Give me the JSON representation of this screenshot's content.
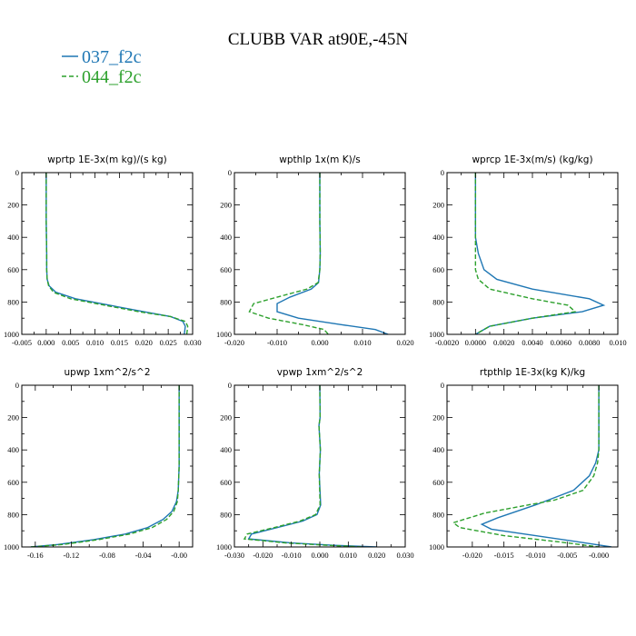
{
  "title": "CLUBB VAR at90E,-45N",
  "colors": {
    "s037": "#1f77b4",
    "s044": "#2ca02c"
  },
  "legend": [
    {
      "label": "037_f2c",
      "color": "#1f77b4",
      "dash": "solid"
    },
    {
      "label": "044_f2c",
      "color": "#2ca02c",
      "dash": "dashed"
    }
  ],
  "chart_data": [
    {
      "type": "line",
      "title": "wprtp  1E-3x(m kg)/(s kg)",
      "xlim": [
        -0.005,
        0.03
      ],
      "ylim": [
        1000,
        0
      ],
      "xticks": [
        -0.005,
        0.0,
        0.005,
        0.01,
        0.015,
        0.02,
        0.025,
        0.03
      ],
      "xtick_labels": [
        "-0.005",
        "0.000",
        "0.005",
        "0.010",
        "0.015",
        "0.020",
        "0.025",
        "0.030"
      ],
      "yticks": [
        0,
        200,
        400,
        600,
        800,
        1000
      ],
      "ytick_labels": [
        "0",
        "200",
        "400",
        "600",
        "800",
        "1000"
      ],
      "series": [
        {
          "name": "037_f2c",
          "color": "#1f77b4",
          "dash": "solid",
          "x": [
            0.0,
            0.0,
            0.0001,
            0.0001,
            0.0002,
            0.0006,
            0.002,
            0.006,
            0.013,
            0.02,
            0.0255,
            0.028,
            0.0285,
            0.0283
          ],
          "y": [
            0,
            300,
            500,
            600,
            660,
            700,
            740,
            780,
            820,
            860,
            890,
            920,
            950,
            1000
          ]
        },
        {
          "name": "044_f2c",
          "color": "#2ca02c",
          "dash": "dashed",
          "x": [
            0.0,
            0.0,
            0.0001,
            0.0001,
            0.0002,
            0.0005,
            0.0015,
            0.005,
            0.012,
            0.019,
            0.0255,
            0.0285,
            0.029,
            0.0288
          ],
          "y": [
            0,
            300,
            500,
            600,
            660,
            700,
            740,
            780,
            820,
            860,
            890,
            920,
            950,
            1000
          ]
        }
      ]
    },
    {
      "type": "line",
      "title": "wpthlp  1x(m K)/s",
      "xlim": [
        -0.02,
        0.02
      ],
      "ylim": [
        1000,
        0
      ],
      "xticks": [
        -0.02,
        -0.01,
        0.0,
        0.01,
        0.02
      ],
      "xtick_labels": [
        "-0.020",
        "-0.010",
        "0.000",
        "0.010",
        "0.020"
      ],
      "yticks": [
        0,
        200,
        400,
        600,
        800,
        1000
      ],
      "ytick_labels": [
        "0",
        "200",
        "400",
        "600",
        "800",
        "1000"
      ],
      "series": [
        {
          "name": "037_f2c",
          "color": "#1f77b4",
          "dash": "solid",
          "x": [
            0.0,
            0.0,
            0.0001,
            0.0,
            -0.0003,
            -0.002,
            -0.007,
            -0.01,
            -0.01,
            -0.005,
            0.005,
            0.013,
            0.016
          ],
          "y": [
            0,
            300,
            500,
            600,
            680,
            720,
            770,
            810,
            860,
            900,
            940,
            970,
            1000
          ]
        },
        {
          "name": "044_f2c",
          "color": "#2ca02c",
          "dash": "dashed",
          "x": [
            0.0,
            0.0,
            0.0001,
            0.0,
            -0.0004,
            -0.003,
            -0.01,
            -0.0155,
            -0.0165,
            -0.012,
            -0.004,
            0.001,
            0.002
          ],
          "y": [
            0,
            300,
            500,
            600,
            680,
            720,
            770,
            810,
            860,
            900,
            940,
            970,
            1000
          ]
        }
      ]
    },
    {
      "type": "line",
      "title": "wprcp  1E-3x(m/s) (kg/kg)",
      "xlim": [
        -0.002,
        0.01
      ],
      "ylim": [
        1000,
        0
      ],
      "xticks": [
        -0.002,
        0.0,
        0.002,
        0.004,
        0.006,
        0.008,
        0.01
      ],
      "xtick_labels": [
        "-0.0020",
        "0.0000",
        "0.0020",
        "0.0040",
        "0.0060",
        "0.0080",
        "0.010"
      ],
      "yticks": [
        0,
        200,
        400,
        600,
        800,
        1000
      ],
      "ytick_labels": [
        "0",
        "200",
        "400",
        "600",
        "800",
        "1000"
      ],
      "series": [
        {
          "name": "037_f2c",
          "color": "#1f77b4",
          "dash": "solid",
          "x": [
            0.0,
            0.0,
            0.0,
            0.0002,
            0.0006,
            0.0015,
            0.004,
            0.008,
            0.009,
            0.0075,
            0.004,
            0.001,
            0.0
          ],
          "y": [
            0,
            300,
            400,
            500,
            600,
            660,
            720,
            780,
            820,
            860,
            900,
            950,
            1000
          ]
        },
        {
          "name": "044_f2c",
          "color": "#2ca02c",
          "dash": "dashed",
          "x": [
            0.0,
            0.0,
            0.0,
            0.0,
            0.0,
            0.0002,
            0.001,
            0.004,
            0.0065,
            0.007,
            0.004,
            0.001,
            0.0
          ],
          "y": [
            0,
            300,
            400,
            500,
            600,
            660,
            720,
            780,
            820,
            860,
            900,
            950,
            1000
          ]
        }
      ]
    },
    {
      "type": "line",
      "title": "upwp  1xm^2/s^2",
      "xlim": [
        -0.175,
        0.015
      ],
      "ylim": [
        1000,
        0
      ],
      "xticks": [
        -0.16,
        -0.12,
        -0.08,
        -0.04,
        0.0
      ],
      "xtick_labels": [
        "-0.16",
        "-0.12",
        "-0.08",
        "-0.04",
        "-0.00"
      ],
      "yticks": [
        0,
        200,
        400,
        600,
        800,
        1000
      ],
      "ytick_labels": [
        "0",
        "200",
        "400",
        "600",
        "800",
        "1000"
      ],
      "series": [
        {
          "name": "037_f2c",
          "color": "#1f77b4",
          "dash": "solid",
          "x": [
            0.0,
            0.0,
            0.0,
            -0.001,
            -0.003,
            -0.008,
            -0.018,
            -0.035,
            -0.06,
            -0.095,
            -0.135,
            -0.165
          ],
          "y": [
            0,
            300,
            500,
            650,
            720,
            780,
            830,
            880,
            920,
            955,
            985,
            1000
          ]
        },
        {
          "name": "044_f2c",
          "color": "#2ca02c",
          "dash": "dashed",
          "x": [
            0.0,
            0.0,
            0.0,
            -0.001,
            -0.002,
            -0.006,
            -0.014,
            -0.03,
            -0.055,
            -0.09,
            -0.13,
            -0.165
          ],
          "y": [
            0,
            300,
            500,
            650,
            720,
            780,
            830,
            880,
            920,
            955,
            985,
            1000
          ]
        }
      ]
    },
    {
      "type": "line",
      "title": "vpwp  1xm^2/s^2",
      "xlim": [
        -0.03,
        0.03
      ],
      "ylim": [
        1000,
        0
      ],
      "xticks": [
        -0.03,
        -0.02,
        -0.01,
        0.0,
        0.01,
        0.02,
        0.03
      ],
      "xtick_labels": [
        "-0.030",
        "-0.020",
        "-0.010",
        "0.000",
        "0.010",
        "0.020",
        "0.030"
      ],
      "yticks": [
        0,
        200,
        400,
        600,
        800,
        1000
      ],
      "ytick_labels": [
        "0",
        "200",
        "400",
        "600",
        "800",
        "1000"
      ],
      "series": [
        {
          "name": "037_f2c",
          "color": "#1f77b4",
          "dash": "solid",
          "x": [
            0.0,
            0.0001,
            -0.0003,
            0.0002,
            -0.0002,
            0.0003,
            -0.001,
            -0.006,
            -0.015,
            -0.024,
            -0.025,
            -0.01,
            0.005,
            0.02
          ],
          "y": [
            0,
            200,
            250,
            400,
            550,
            740,
            800,
            840,
            880,
            920,
            950,
            975,
            990,
            1000
          ]
        },
        {
          "name": "044_f2c",
          "color": "#2ca02c",
          "dash": "dashed",
          "x": [
            0.0,
            0.0001,
            -0.0003,
            0.0002,
            -0.0002,
            0.0001,
            -0.0015,
            -0.007,
            -0.016,
            -0.0255,
            -0.0265,
            -0.012,
            0.003,
            0.015
          ],
          "y": [
            0,
            200,
            250,
            400,
            550,
            740,
            800,
            840,
            880,
            920,
            950,
            975,
            990,
            1000
          ]
        }
      ]
    },
    {
      "type": "line",
      "title": "rtpthlp  1E-3x(kg K)/kg",
      "xlim": [
        -0.024,
        0.003
      ],
      "ylim": [
        1000,
        0
      ],
      "xticks": [
        -0.02,
        -0.015,
        -0.01,
        -0.005,
        0.0
      ],
      "xtick_labels": [
        "-0.020",
        "-0.015",
        "-0.010",
        "-0.005",
        "-0.000"
      ],
      "yticks": [
        0,
        200,
        400,
        600,
        800,
        1000
      ],
      "ytick_labels": [
        "0",
        "200",
        "400",
        "600",
        "800",
        "1000"
      ],
      "series": [
        {
          "name": "037_f2c",
          "color": "#1f77b4",
          "dash": "solid",
          "x": [
            0.0,
            0.0,
            0.0,
            -0.0005,
            -0.0015,
            -0.004,
            -0.01,
            -0.016,
            -0.0185,
            -0.017,
            -0.01,
            -0.003,
            0.002
          ],
          "y": [
            0,
            300,
            400,
            480,
            560,
            650,
            740,
            820,
            860,
            890,
            930,
            970,
            1000
          ]
        },
        {
          "name": "044_f2c",
          "color": "#2ca02c",
          "dash": "dashed",
          "x": [
            0.0,
            0.0,
            0.0,
            -0.0002,
            -0.0008,
            -0.0025,
            -0.007,
            -0.018,
            -0.023,
            -0.022,
            -0.015,
            -0.006,
            0.0
          ],
          "y": [
            0,
            300,
            400,
            480,
            560,
            650,
            710,
            790,
            850,
            880,
            930,
            970,
            1000
          ]
        }
      ]
    }
  ]
}
